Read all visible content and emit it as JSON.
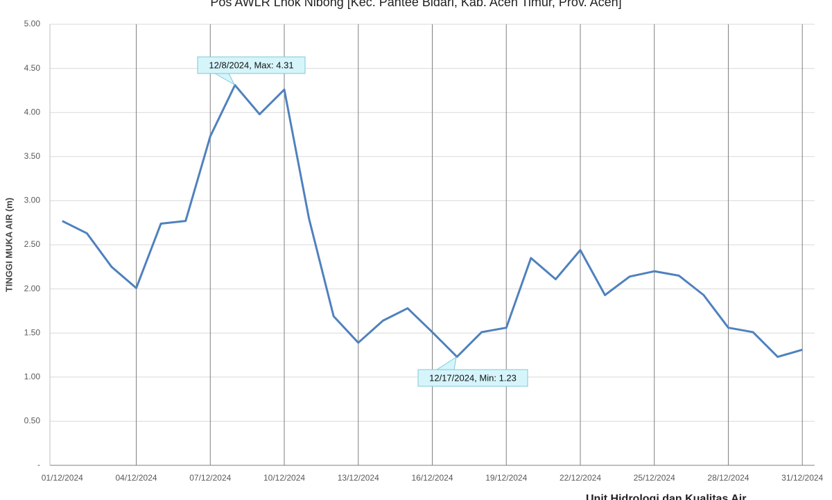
{
  "chart_data": {
    "type": "line",
    "title": "Pos AWLR Lhok Nibong [Kec. Pantee Bidari, Kab. Aceh Timur, Prov. Aceh]",
    "y_label": "TINGGI MUKA AIR (m)",
    "footer": "Unit Hidrologi dan Kualitas Air",
    "categories": [
      "01/12/2024",
      null,
      null,
      "04/12/2024",
      null,
      null,
      "07/12/2024",
      null,
      null,
      "10/12/2024",
      null,
      null,
      "13/12/2024",
      null,
      null,
      "16/12/2024",
      null,
      null,
      "19/12/2024",
      null,
      null,
      "22/12/2024",
      null,
      null,
      "25/12/2024",
      null,
      null,
      "28/12/2024",
      null,
      null,
      "31/12/2024"
    ],
    "series": [
      {
        "name": "Tinggi Muka Air",
        "color": "#4f81bd",
        "values": [
          2.77,
          2.63,
          2.25,
          2.01,
          2.74,
          2.77,
          3.73,
          4.31,
          3.98,
          4.26,
          2.8,
          1.69,
          1.39,
          1.64,
          1.78,
          1.51,
          1.23,
          1.51,
          1.56,
          2.35,
          2.11,
          2.44,
          1.93,
          2.14,
          2.2,
          2.15,
          1.93,
          1.56,
          1.51,
          1.23,
          1.31
        ]
      }
    ],
    "ylim": [
      0,
      5
    ],
    "yticks": [
      {
        "value": 0,
        "label": "-"
      },
      {
        "value": 0.5,
        "label": "0.50"
      },
      {
        "value": 1,
        "label": "1.00"
      },
      {
        "value": 1.5,
        "label": "1.50"
      },
      {
        "value": 2,
        "label": "2.00"
      },
      {
        "value": 2.5,
        "label": "2.50"
      },
      {
        "value": 3,
        "label": "3.00"
      },
      {
        "value": 3.5,
        "label": "3.50"
      },
      {
        "value": 4,
        "label": "4.00"
      },
      {
        "value": 4.5,
        "label": "4.50"
      },
      {
        "value": 5,
        "label": "5.00"
      }
    ],
    "grid": true,
    "annotations": [
      "12/8/2024, Max: 4.31",
      "12/17/2024, Min: 1.23"
    ]
  }
}
